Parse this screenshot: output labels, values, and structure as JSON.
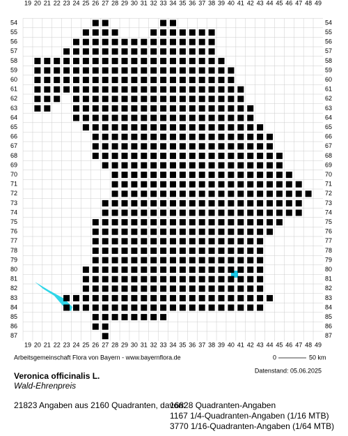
{
  "columns": [
    19,
    20,
    21,
    22,
    23,
    24,
    25,
    26,
    27,
    28,
    29,
    30,
    31,
    32,
    33,
    34,
    35,
    36,
    37,
    38,
    39,
    40,
    41,
    42,
    43,
    44,
    45,
    46,
    47,
    48,
    49
  ],
  "rows": [
    54,
    55,
    56,
    57,
    58,
    59,
    60,
    61,
    62,
    63,
    64,
    65,
    66,
    67,
    68,
    69,
    70,
    71,
    72,
    73,
    74,
    75,
    76,
    77,
    78,
    79,
    80,
    81,
    82,
    83,
    84,
    85,
    86,
    87
  ],
  "presence": [
    [
      [
        26,
        27
      ],
      [
        33,
        34
      ]
    ],
    [
      [
        25,
        28
      ],
      [
        32,
        38
      ]
    ],
    [
      [
        24,
        38
      ]
    ],
    [
      [
        23,
        38
      ]
    ],
    [
      [
        20,
        39
      ]
    ],
    [
      [
        20,
        40
      ]
    ],
    [
      [
        20,
        40
      ]
    ],
    [
      [
        20,
        41
      ]
    ],
    [
      [
        20,
        22
      ],
      [
        24,
        41
      ]
    ],
    [
      [
        20,
        21
      ],
      [
        24,
        42
      ]
    ],
    [
      [
        24,
        42
      ]
    ],
    [
      [
        25,
        43
      ]
    ],
    [
      [
        26,
        44
      ]
    ],
    [
      [
        26,
        44
      ]
    ],
    [
      [
        26,
        45
      ]
    ],
    [
      [
        27,
        45
      ]
    ],
    [
      [
        28,
        46
      ]
    ],
    [
      [
        28,
        47
      ]
    ],
    [
      [
        28,
        48
      ]
    ],
    [
      [
        27,
        47
      ]
    ],
    [
      [
        27,
        47
      ]
    ],
    [
      [
        26,
        45
      ]
    ],
    [
      [
        26,
        44
      ]
    ],
    [
      [
        26,
        43
      ]
    ],
    [
      [
        26,
        43
      ]
    ],
    [
      [
        26,
        43
      ]
    ],
    [
      [
        25,
        43
      ]
    ],
    [
      [
        25,
        43
      ]
    ],
    [
      [
        25,
        43
      ]
    ],
    [
      [
        23,
        44
      ]
    ],
    [
      [
        23,
        43
      ]
    ],
    [
      [
        26,
        33
      ]
    ],
    [
      [
        26,
        27
      ]
    ],
    [
      [
        27,
        27
      ]
    ]
  ],
  "credit": "Arbeitsgemeinschaft Flora von Bayern - www.bayernflora.de",
  "scale": {
    "start": "0",
    "end": "50 km"
  },
  "date": "Datenstand: 05.06.2025",
  "title": "Veronica officinalis L.",
  "subtitle": "Wald-Ehrenpreis",
  "stats": {
    "summary": "21823 Angaben aus 2160 Quadranten, davon:",
    "lines": [
      "16828 Quadranten-Angaben",
      "1167 1/4-Quadranten-Angaben (1/16 MTB)",
      "3770 1/16-Quadranten-Angaben (1/64 MTB)"
    ]
  }
}
